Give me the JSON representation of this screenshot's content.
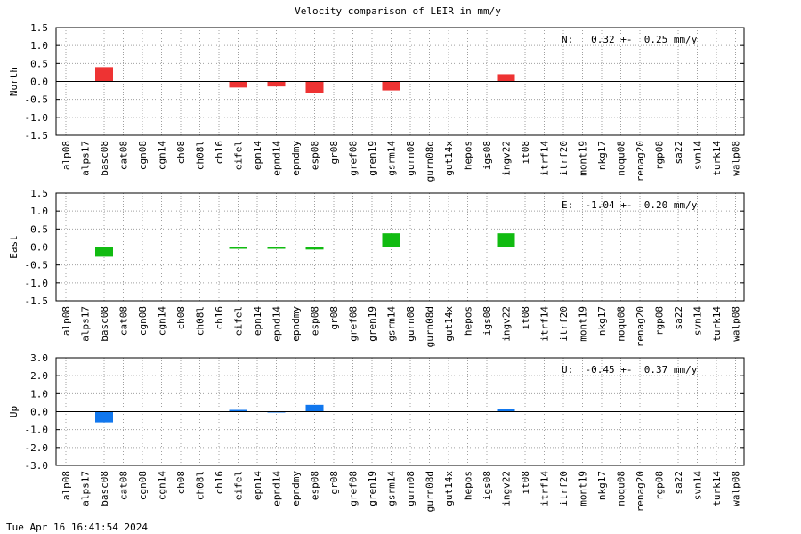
{
  "title": "Velocity comparison of LEIR in mm/y",
  "footer": "Tue Apr 16 16:41:54 2024",
  "chart_data": [
    {
      "type": "bar",
      "ylabel": "North",
      "color": "#ee3333",
      "ylim": [
        -1.5,
        1.5
      ],
      "yticks": [
        1.5,
        1.0,
        0.5,
        0.0,
        -0.5,
        -1.0,
        -1.5
      ],
      "annotation": "N:   0.32 +-  0.25 mm/y",
      "categories": [
        "alp08",
        "alps17",
        "basc08",
        "cat08",
        "cgn08",
        "cgn14",
        "ch08",
        "ch08l",
        "ch16",
        "eifel",
        "epn14",
        "epnd14",
        "epndmy",
        "esp08",
        "gr08",
        "gref08",
        "gren19",
        "gsrm14",
        "gurn08",
        "gurn08d",
        "gut14x",
        "hepos",
        "igs08",
        "ingv22",
        "it08",
        "itrf14",
        "itrf20",
        "mont19",
        "nkg17",
        "noqu08",
        "renag20",
        "rgp08",
        "sa22",
        "svn14",
        "turk14",
        "walp08"
      ],
      "values": [
        null,
        null,
        0.4,
        null,
        null,
        null,
        null,
        null,
        null,
        -0.17,
        null,
        -0.14,
        null,
        -0.32,
        null,
        null,
        null,
        -0.25,
        null,
        null,
        null,
        null,
        null,
        0.2,
        null,
        null,
        null,
        null,
        null,
        null,
        null,
        null,
        null,
        null,
        null,
        null
      ]
    },
    {
      "type": "bar",
      "ylabel": "East",
      "color": "#11bb11",
      "ylim": [
        -1.5,
        1.5
      ],
      "yticks": [
        1.5,
        1.0,
        0.5,
        0.0,
        -0.5,
        -1.0,
        -1.5
      ],
      "annotation": "E:  -1.04 +-  0.20 mm/y",
      "categories": [
        "alp08",
        "alps17",
        "basc08",
        "cat08",
        "cgn08",
        "cgn14",
        "ch08",
        "ch08l",
        "ch16",
        "eifel",
        "epn14",
        "epnd14",
        "epndmy",
        "esp08",
        "gr08",
        "gref08",
        "gren19",
        "gsrm14",
        "gurn08",
        "gurn08d",
        "gut14x",
        "hepos",
        "igs08",
        "ingv22",
        "it08",
        "itrf14",
        "itrf20",
        "mont19",
        "nkg17",
        "noqu08",
        "renag20",
        "rgp08",
        "sa22",
        "svn14",
        "turk14",
        "walp08"
      ],
      "values": [
        null,
        null,
        -0.27,
        null,
        null,
        null,
        null,
        null,
        null,
        -0.05,
        null,
        -0.05,
        null,
        -0.07,
        null,
        null,
        null,
        0.38,
        null,
        null,
        null,
        null,
        null,
        0.38,
        null,
        null,
        null,
        null,
        null,
        null,
        null,
        null,
        null,
        null,
        null,
        null
      ]
    },
    {
      "type": "bar",
      "ylabel": "Up",
      "color": "#1177ee",
      "ylim": [
        -3.0,
        3.0
      ],
      "yticks": [
        3.0,
        2.0,
        1.0,
        0.0,
        -1.0,
        -2.0,
        -3.0
      ],
      "annotation": "U:  -0.45 +-  0.37 mm/y",
      "categories": [
        "alp08",
        "alps17",
        "basc08",
        "cat08",
        "cgn08",
        "cgn14",
        "ch08",
        "ch08l",
        "ch16",
        "eifel",
        "epn14",
        "epnd14",
        "epndmy",
        "esp08",
        "gr08",
        "gref08",
        "gren19",
        "gsrm14",
        "gurn08",
        "gurn08d",
        "gut14x",
        "hepos",
        "igs08",
        "ingv22",
        "it08",
        "itrf14",
        "itrf20",
        "mont19",
        "nkg17",
        "noqu08",
        "renag20",
        "rgp08",
        "sa22",
        "svn14",
        "turk14",
        "walp08"
      ],
      "values": [
        null,
        null,
        -0.6,
        null,
        null,
        null,
        null,
        null,
        null,
        0.1,
        null,
        -0.05,
        null,
        0.38,
        null,
        null,
        null,
        null,
        null,
        null,
        null,
        null,
        null,
        0.15,
        null,
        null,
        null,
        null,
        null,
        null,
        null,
        null,
        null,
        null,
        null,
        null
      ]
    }
  ]
}
